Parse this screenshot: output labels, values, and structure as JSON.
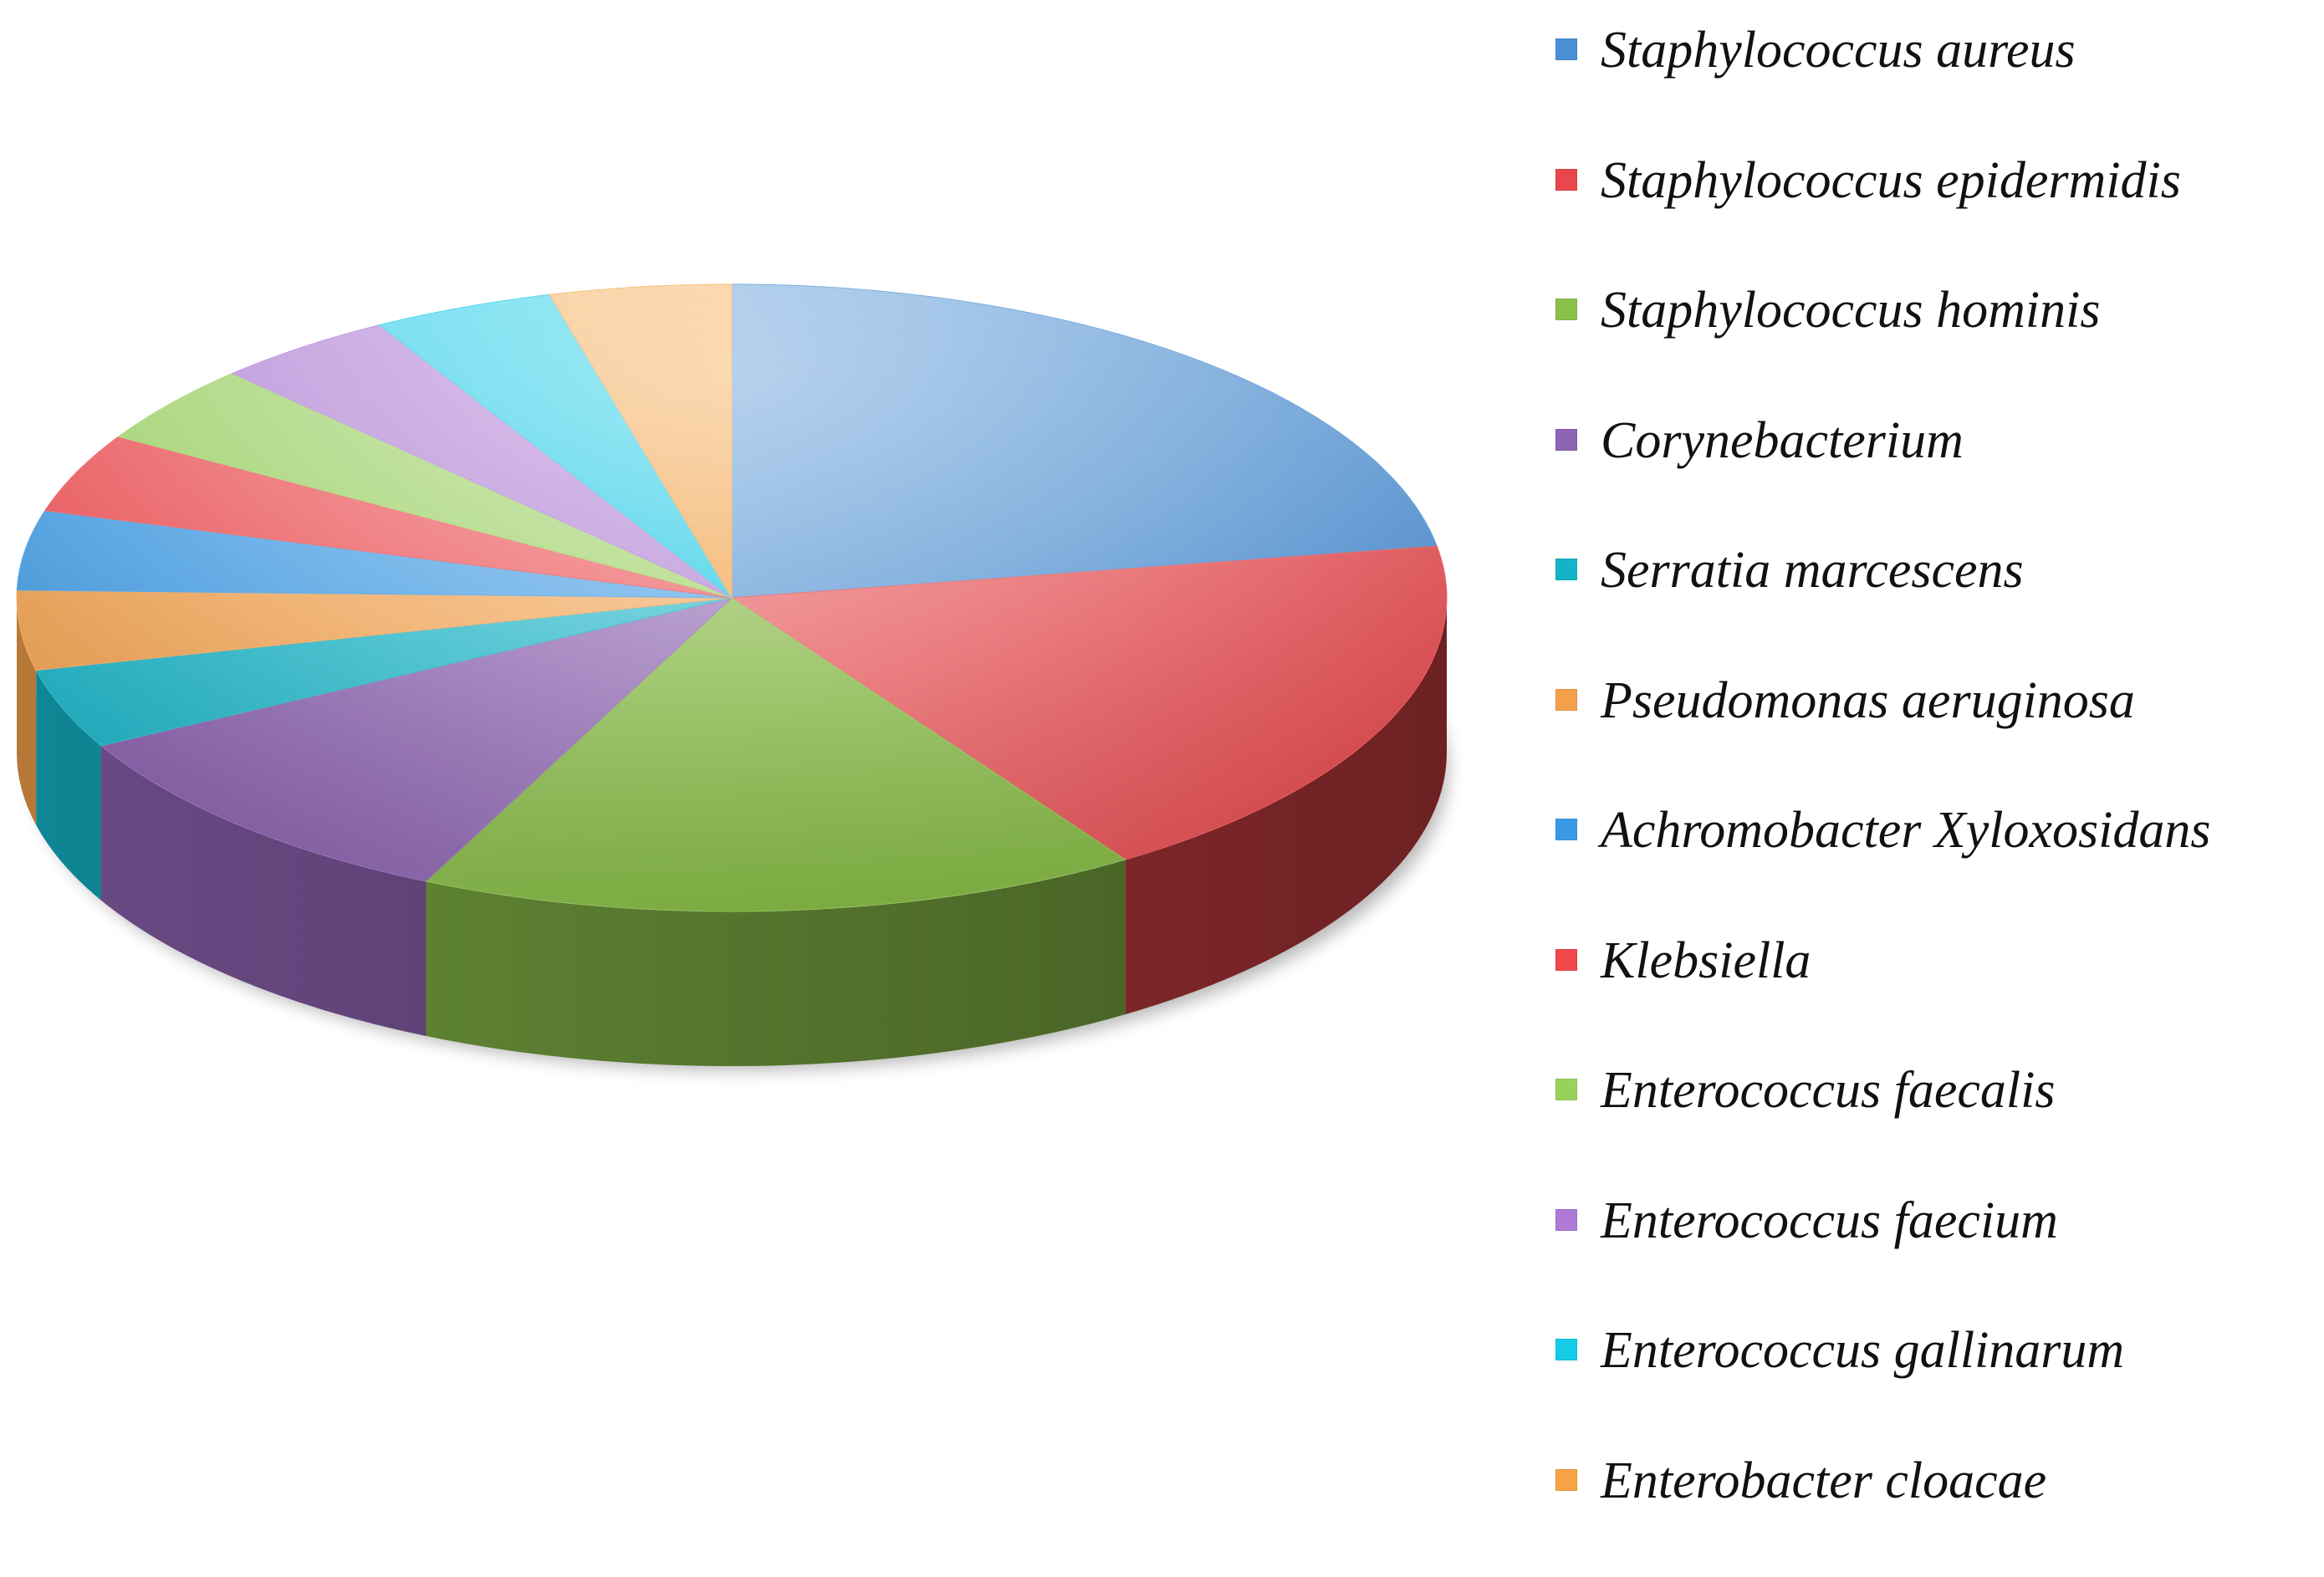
{
  "chart_data": {
    "type": "pie",
    "title": "",
    "three_d": true,
    "legend_position": "right",
    "slices": [
      {
        "label": "Staphylococcus aureus",
        "value": 22.9,
        "color": "#4a8fd4"
      },
      {
        "label": "Staphylococcus epidermidis",
        "value": 18.8,
        "color": "#e8474b"
      },
      {
        "label": "Staphylococcus hominis",
        "value": 16.7,
        "color": "#8bc04a"
      },
      {
        "label": "Corynebacterium",
        "value": 10.4,
        "color": "#8e64b2"
      },
      {
        "label": "Serratia marcescens",
        "value": 4.2,
        "color": "#14b4c8"
      },
      {
        "label": "Pseudomonas aeruginosa",
        "value": 4.2,
        "color": "#f4a04a"
      },
      {
        "label": "Achromobacter Xyloxosidans",
        "value": 4.2,
        "color": "#3a9ae6"
      },
      {
        "label": "Klebsiella",
        "value": 4.2,
        "color": "#f0484c"
      },
      {
        "label": "Enterococcus faecalis",
        "value": 4.2,
        "color": "#98d25c"
      },
      {
        "label": "Enterococcus faecium",
        "value": 4.2,
        "color": "#ae7ad6"
      },
      {
        "label": "Enterococcus gallinarum",
        "value": 4.2,
        "color": "#14cbe8"
      },
      {
        "label": "Enterobacter cloacae",
        "value": 4.2,
        "color": "#f7a445"
      }
    ]
  }
}
